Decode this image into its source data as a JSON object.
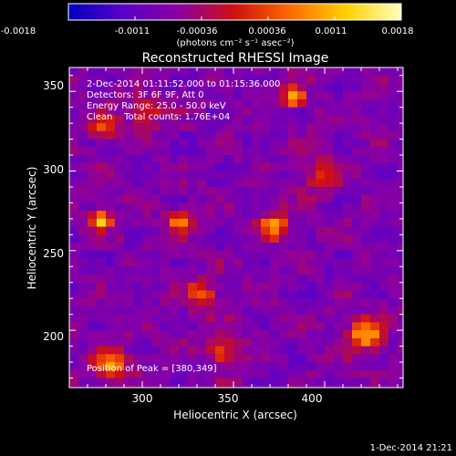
{
  "colorbar": {
    "ticks": [
      "-0.0018",
      "-0.0011",
      "-0.00036",
      "0.00036",
      "0.0011",
      "0.0018"
    ],
    "units_label": "(photons cm⁻² s⁻¹ asec⁻²)",
    "colors": [
      "#0000c0",
      "#5a00c8",
      "#8c00a0",
      "#d01010",
      "#ff6a00",
      "#ffd000",
      "#ffffc0"
    ]
  },
  "chart_data": {
    "type": "heatmap",
    "title": "Reconstructed RHESSI Image",
    "xlabel": "Heliocentric X (arcsec)",
    "ylabel": "Heliocentric Y (arcsec)",
    "xlim": [
      260,
      443
    ],
    "ylim": [
      164,
      365
    ],
    "x_ticks": [
      300,
      350,
      400
    ],
    "y_ticks": [
      200,
      250,
      300,
      350
    ],
    "annotations": [
      "2-Dec-2014 01:11:52.000 to 01:15:36.000",
      "Detectors: 3F 6F 9F, Att 0",
      "Energy Range: 25.0 - 50.0 keV",
      "Clean    Total counts: 1.76E+04"
    ],
    "peak_label": "Position of Peak = [380,349]",
    "peak": [
      380,
      349
    ],
    "color_range": [
      -0.0018,
      0.0018
    ],
    "grid": false
  },
  "footer": {
    "timestamp": "1-Dec-2014 21:21"
  }
}
